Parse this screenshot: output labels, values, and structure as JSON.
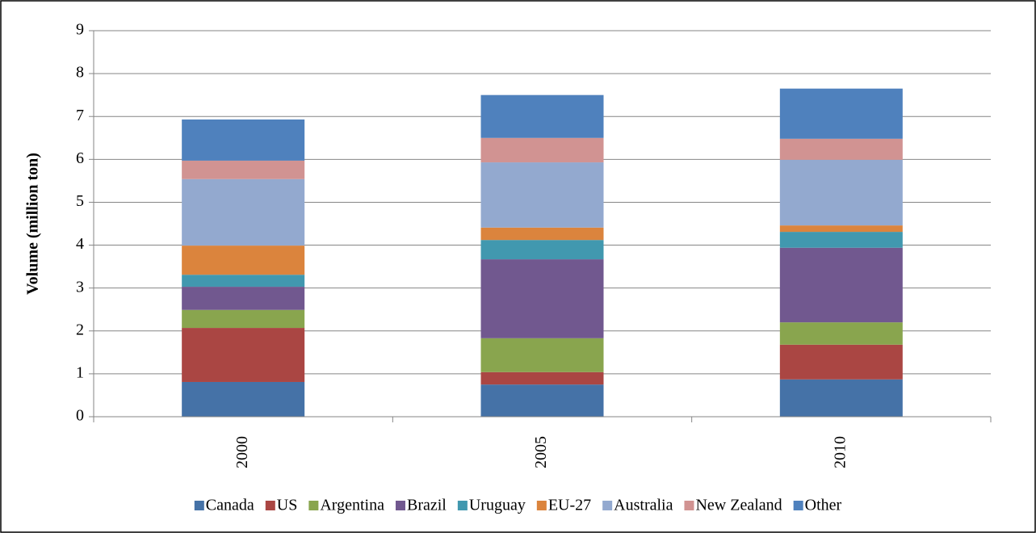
{
  "chart_data": {
    "type": "stacked_bar",
    "y_label": "Volume (million ton)",
    "categories": [
      "2000",
      "2005",
      "2010"
    ],
    "series": [
      {
        "name": "Canada",
        "color": "#4572a7",
        "values": [
          0.81,
          0.75,
          0.87
        ]
      },
      {
        "name": "US",
        "color": "#aa4643",
        "values": [
          1.26,
          0.29,
          0.81
        ]
      },
      {
        "name": "Argentina",
        "color": "#89a54e",
        "values": [
          0.42,
          0.79,
          0.52
        ]
      },
      {
        "name": "Brazil",
        "color": "#71588f",
        "values": [
          0.54,
          1.84,
          1.74
        ]
      },
      {
        "name": "Uruguay",
        "color": "#4198af",
        "values": [
          0.28,
          0.45,
          0.37
        ]
      },
      {
        "name": "EU-27",
        "color": "#db843d",
        "values": [
          0.68,
          0.29,
          0.15
        ]
      },
      {
        "name": "Australia",
        "color": "#93a9cf",
        "values": [
          1.55,
          1.52,
          1.53
        ]
      },
      {
        "name": "New Zealand",
        "color": "#d19392",
        "values": [
          0.43,
          0.57,
          0.49
        ]
      },
      {
        "name": "Other",
        "color": "#4f81bd",
        "values": [
          0.96,
          1.0,
          1.17
        ]
      }
    ],
    "ylim": [
      0,
      9
    ],
    "yticks": [
      0,
      1,
      2,
      3,
      4,
      5,
      6,
      7,
      8,
      9
    ],
    "grid": true,
    "legend": "bottom"
  }
}
